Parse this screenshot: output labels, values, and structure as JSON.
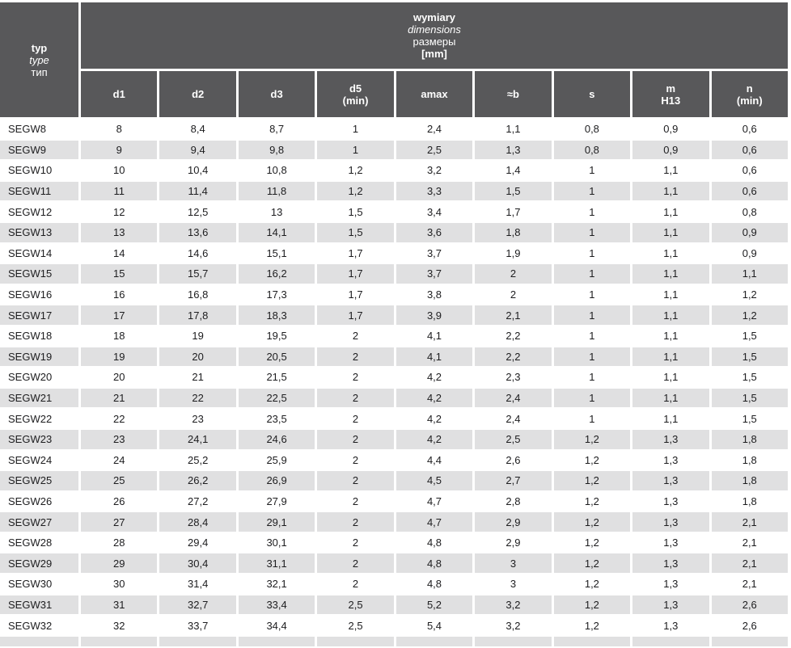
{
  "colors": {
    "header_bg": "#58585a",
    "header_text": "#ffffff",
    "stripe_bg": "#e0e0e1",
    "row_bg": "#ffffff",
    "text": "#1d1d1f"
  },
  "table": {
    "corner": {
      "line1": "typ",
      "line2": "type",
      "line3": "тип"
    },
    "group": {
      "line1": "wymiary",
      "line2": "dimensions",
      "line3": "размеры",
      "line4": "[mm]"
    },
    "columns": [
      {
        "label": "d1",
        "sub": ""
      },
      {
        "label": "d2",
        "sub": ""
      },
      {
        "label": "d3",
        "sub": ""
      },
      {
        "label": "d5",
        "sub": "(min)"
      },
      {
        "label": "amax",
        "sub": ""
      },
      {
        "label": "≈b",
        "sub": ""
      },
      {
        "label": "s",
        "sub": ""
      },
      {
        "label": "m",
        "sub": "H13"
      },
      {
        "label": "n",
        "sub": "(min)"
      }
    ],
    "rows": [
      {
        "type": "SEGW8",
        "values": [
          "8",
          "8,4",
          "8,7",
          "1",
          "2,4",
          "1,1",
          "0,8",
          "0,9",
          "0,6"
        ]
      },
      {
        "type": "SEGW9",
        "values": [
          "9",
          "9,4",
          "9,8",
          "1",
          "2,5",
          "1,3",
          "0,8",
          "0,9",
          "0,6"
        ]
      },
      {
        "type": "SEGW10",
        "values": [
          "10",
          "10,4",
          "10,8",
          "1,2",
          "3,2",
          "1,4",
          "1",
          "1,1",
          "0,6"
        ]
      },
      {
        "type": "SEGW11",
        "values": [
          "11",
          "11,4",
          "11,8",
          "1,2",
          "3,3",
          "1,5",
          "1",
          "1,1",
          "0,6"
        ]
      },
      {
        "type": "SEGW12",
        "values": [
          "12",
          "12,5",
          "13",
          "1,5",
          "3,4",
          "1,7",
          "1",
          "1,1",
          "0,8"
        ]
      },
      {
        "type": "SEGW13",
        "values": [
          "13",
          "13,6",
          "14,1",
          "1,5",
          "3,6",
          "1,8",
          "1",
          "1,1",
          "0,9"
        ]
      },
      {
        "type": "SEGW14",
        "values": [
          "14",
          "14,6",
          "15,1",
          "1,7",
          "3,7",
          "1,9",
          "1",
          "1,1",
          "0,9"
        ]
      },
      {
        "type": "SEGW15",
        "values": [
          "15",
          "15,7",
          "16,2",
          "1,7",
          "3,7",
          "2",
          "1",
          "1,1",
          "1,1"
        ]
      },
      {
        "type": "SEGW16",
        "values": [
          "16",
          "16,8",
          "17,3",
          "1,7",
          "3,8",
          "2",
          "1",
          "1,1",
          "1,2"
        ]
      },
      {
        "type": "SEGW17",
        "values": [
          "17",
          "17,8",
          "18,3",
          "1,7",
          "3,9",
          "2,1",
          "1",
          "1,1",
          "1,2"
        ]
      },
      {
        "type": "SEGW18",
        "values": [
          "18",
          "19",
          "19,5",
          "2",
          "4,1",
          "2,2",
          "1",
          "1,1",
          "1,5"
        ]
      },
      {
        "type": "SEGW19",
        "values": [
          "19",
          "20",
          "20,5",
          "2",
          "4,1",
          "2,2",
          "1",
          "1,1",
          "1,5"
        ]
      },
      {
        "type": "SEGW20",
        "values": [
          "20",
          "21",
          "21,5",
          "2",
          "4,2",
          "2,3",
          "1",
          "1,1",
          "1,5"
        ]
      },
      {
        "type": "SEGW21",
        "values": [
          "21",
          "22",
          "22,5",
          "2",
          "4,2",
          "2,4",
          "1",
          "1,1",
          "1,5"
        ]
      },
      {
        "type": "SEGW22",
        "values": [
          "22",
          "23",
          "23,5",
          "2",
          "4,2",
          "2,4",
          "1",
          "1,1",
          "1,5"
        ]
      },
      {
        "type": "SEGW23",
        "values": [
          "23",
          "24,1",
          "24,6",
          "2",
          "4,2",
          "2,5",
          "1,2",
          "1,3",
          "1,8"
        ]
      },
      {
        "type": "SEGW24",
        "values": [
          "24",
          "25,2",
          "25,9",
          "2",
          "4,4",
          "2,6",
          "1,2",
          "1,3",
          "1,8"
        ]
      },
      {
        "type": "SEGW25",
        "values": [
          "25",
          "26,2",
          "26,9",
          "2",
          "4,5",
          "2,7",
          "1,2",
          "1,3",
          "1,8"
        ]
      },
      {
        "type": "SEGW26",
        "values": [
          "26",
          "27,2",
          "27,9",
          "2",
          "4,7",
          "2,8",
          "1,2",
          "1,3",
          "1,8"
        ]
      },
      {
        "type": "SEGW27",
        "values": [
          "27",
          "28,4",
          "29,1",
          "2",
          "4,7",
          "2,9",
          "1,2",
          "1,3",
          "2,1"
        ]
      },
      {
        "type": "SEGW28",
        "values": [
          "28",
          "29,4",
          "30,1",
          "2",
          "4,8",
          "2,9",
          "1,2",
          "1,3",
          "2,1"
        ]
      },
      {
        "type": "SEGW29",
        "values": [
          "29",
          "30,4",
          "31,1",
          "2",
          "4,8",
          "3",
          "1,2",
          "1,3",
          "2,1"
        ]
      },
      {
        "type": "SEGW30",
        "values": [
          "30",
          "31,4",
          "32,1",
          "2",
          "4,8",
          "3",
          "1,2",
          "1,3",
          "2,1"
        ]
      },
      {
        "type": "SEGW31",
        "values": [
          "31",
          "32,7",
          "33,4",
          "2,5",
          "5,2",
          "3,2",
          "1,2",
          "1,3",
          "2,6"
        ]
      },
      {
        "type": "SEGW32",
        "values": [
          "32",
          "33,7",
          "34,4",
          "2,5",
          "5,4",
          "3,2",
          "1,2",
          "1,3",
          "2,6"
        ]
      }
    ]
  }
}
